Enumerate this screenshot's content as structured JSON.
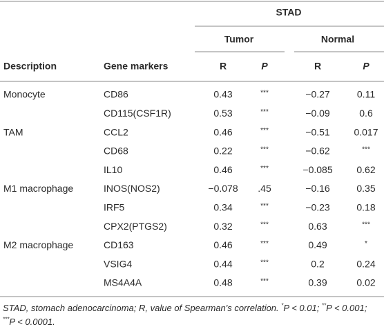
{
  "table": {
    "group_header": "STAD",
    "subgroups": [
      "Tumor",
      "Normal"
    ],
    "columns": [
      "Description",
      "Gene markers",
      "R",
      "P",
      "R",
      "P"
    ],
    "groups": [
      {
        "description": "Monocyte",
        "rows": [
          [
            "CD86",
            "0.43",
            "***",
            "−0.27",
            "0.11"
          ],
          [
            "CD115(CSF1R)",
            "0.53",
            "***",
            "−0.09",
            "0.6"
          ]
        ]
      },
      {
        "description": "TAM",
        "rows": [
          [
            "CCL2",
            "0.46",
            "***",
            "−0.51",
            "0.017"
          ],
          [
            "CD68",
            "0.22",
            "***",
            "−0.62",
            "***"
          ],
          [
            "IL10",
            "0.46",
            "***",
            "−0.085",
            "0.62"
          ]
        ]
      },
      {
        "description": "M1 macrophage",
        "rows": [
          [
            "INOS(NOS2)",
            "−0.078",
            ".45",
            "−0.16",
            "0.35"
          ],
          [
            "IRF5",
            "0.34",
            "***",
            "−0.23",
            "0.18"
          ],
          [
            "CPX2(PTGS2)",
            "0.32",
            "***",
            "0.63",
            "***"
          ]
        ]
      },
      {
        "description": "M2 macrophage",
        "rows": [
          [
            "CD163",
            "0.46",
            "***",
            "0.49",
            "*"
          ],
          [
            "VSIG4",
            "0.44",
            "***",
            "0.2",
            "0.24"
          ],
          [
            "MS4A4A",
            "0.48",
            "***",
            "0.39",
            "0.02"
          ]
        ]
      }
    ],
    "footnote": [
      "STAD, stomach adenocarcinoma; R, value of Spearman's correlation. ",
      "*",
      "P < 0.01; ",
      "**",
      "P < 0.001; ",
      "***",
      "P < 0.0001."
    ]
  }
}
